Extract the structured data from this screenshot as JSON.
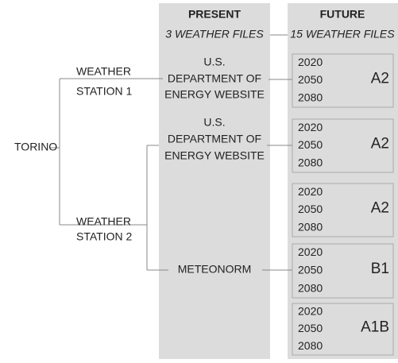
{
  "root": {
    "label": "TORINO"
  },
  "stations": [
    {
      "lines": [
        "WEATHER",
        "STATION 1"
      ]
    },
    {
      "lines": [
        "WEATHER",
        "STATION 2"
      ]
    }
  ],
  "present": {
    "title": "PRESENT",
    "subtitle": "3 WEATHER FILES",
    "sources": [
      {
        "lines": [
          "U.S.",
          "DEPARTMENT OF",
          "ENERGY WEBSITE"
        ]
      },
      {
        "lines": [
          "U.S.",
          "DEPARTMENT OF",
          "ENERGY WEBSITE"
        ]
      },
      {
        "lines": [
          "METEONORM"
        ]
      }
    ]
  },
  "future": {
    "title": "FUTURE",
    "subtitle": "15 WEATHER FILES",
    "groups": [
      {
        "years": [
          "2020",
          "2050",
          "2080"
        ],
        "scenario": "A2"
      },
      {
        "years": [
          "2020",
          "2050",
          "2080"
        ],
        "scenario": "A2"
      },
      {
        "years": [
          "2020",
          "2050",
          "2080"
        ],
        "scenario": "A2"
      },
      {
        "years": [
          "2020",
          "2050",
          "2080"
        ],
        "scenario": "B1"
      },
      {
        "years": [
          "2020",
          "2050",
          "2080"
        ],
        "scenario": "A1B"
      }
    ]
  }
}
